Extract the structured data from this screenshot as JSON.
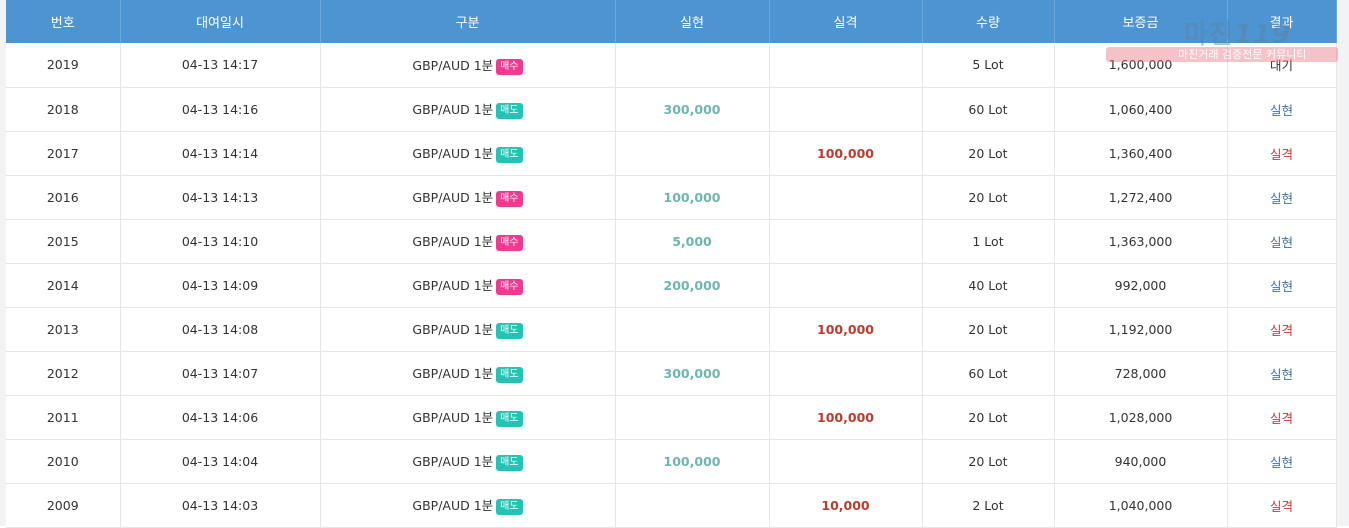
{
  "headers": [
    "번호",
    "대여일시",
    "구분",
    "실현",
    "실격",
    "수량",
    "보증금",
    "결과"
  ],
  "rows": [
    {
      "no": "2019",
      "time": "04-13 14:17",
      "pair": "GBP/AUD 1분",
      "side": "매수",
      "side_type": "buy",
      "win": "",
      "loss": "",
      "qty": "5 Lot",
      "deposit": "1,600,000",
      "result": "대기",
      "result_type": "wait"
    },
    {
      "no": "2018",
      "time": "04-13 14:16",
      "pair": "GBP/AUD 1분",
      "side": "매도",
      "side_type": "sell",
      "win": "300,000",
      "loss": "",
      "qty": "60 Lot",
      "deposit": "1,060,400",
      "result": "실현",
      "result_type": "win"
    },
    {
      "no": "2017",
      "time": "04-13 14:14",
      "pair": "GBP/AUD 1분",
      "side": "매도",
      "side_type": "sell",
      "win": "",
      "loss": "100,000",
      "qty": "20 Lot",
      "deposit": "1,360,400",
      "result": "실격",
      "result_type": "loss"
    },
    {
      "no": "2016",
      "time": "04-13 14:13",
      "pair": "GBP/AUD 1분",
      "side": "매수",
      "side_type": "buy",
      "win": "100,000",
      "loss": "",
      "qty": "20 Lot",
      "deposit": "1,272,400",
      "result": "실현",
      "result_type": "win"
    },
    {
      "no": "2015",
      "time": "04-13 14:10",
      "pair": "GBP/AUD 1분",
      "side": "매수",
      "side_type": "buy",
      "win": "5,000",
      "loss": "",
      "qty": "1 Lot",
      "deposit": "1,363,000",
      "result": "실현",
      "result_type": "win"
    },
    {
      "no": "2014",
      "time": "04-13 14:09",
      "pair": "GBP/AUD 1분",
      "side": "매수",
      "side_type": "buy",
      "win": "200,000",
      "loss": "",
      "qty": "40 Lot",
      "deposit": "992,000",
      "result": "실현",
      "result_type": "win"
    },
    {
      "no": "2013",
      "time": "04-13 14:08",
      "pair": "GBP/AUD 1분",
      "side": "매도",
      "side_type": "sell",
      "win": "",
      "loss": "100,000",
      "qty": "20 Lot",
      "deposit": "1,192,000",
      "result": "실격",
      "result_type": "loss"
    },
    {
      "no": "2012",
      "time": "04-13 14:07",
      "pair": "GBP/AUD 1분",
      "side": "매도",
      "side_type": "sell",
      "win": "300,000",
      "loss": "",
      "qty": "60 Lot",
      "deposit": "728,000",
      "result": "실현",
      "result_type": "win"
    },
    {
      "no": "2011",
      "time": "04-13 14:06",
      "pair": "GBP/AUD 1분",
      "side": "매도",
      "side_type": "sell",
      "win": "",
      "loss": "100,000",
      "qty": "20 Lot",
      "deposit": "1,028,000",
      "result": "실격",
      "result_type": "loss"
    },
    {
      "no": "2010",
      "time": "04-13 14:04",
      "pair": "GBP/AUD 1분",
      "side": "매도",
      "side_type": "sell",
      "win": "100,000",
      "loss": "",
      "qty": "20 Lot",
      "deposit": "940,000",
      "result": "실현",
      "result_type": "win"
    },
    {
      "no": "2009",
      "time": "04-13 14:03",
      "pair": "GBP/AUD 1분",
      "side": "매도",
      "side_type": "sell",
      "win": "",
      "loss": "10,000",
      "qty": "2 Lot",
      "deposit": "1,040,000",
      "result": "실격",
      "result_type": "loss"
    }
  ],
  "watermark": {
    "logo": "마진",
    "logo_suffix": "119",
    "caption": "마진거래 검증전문 커뮤니티"
  },
  "colors": {
    "header_bg": "#4d94d2",
    "win": "#6cb6ad",
    "loss": "#c0392b",
    "buy_badge": "#f0398f",
    "sell_badge": "#26c2b4"
  }
}
